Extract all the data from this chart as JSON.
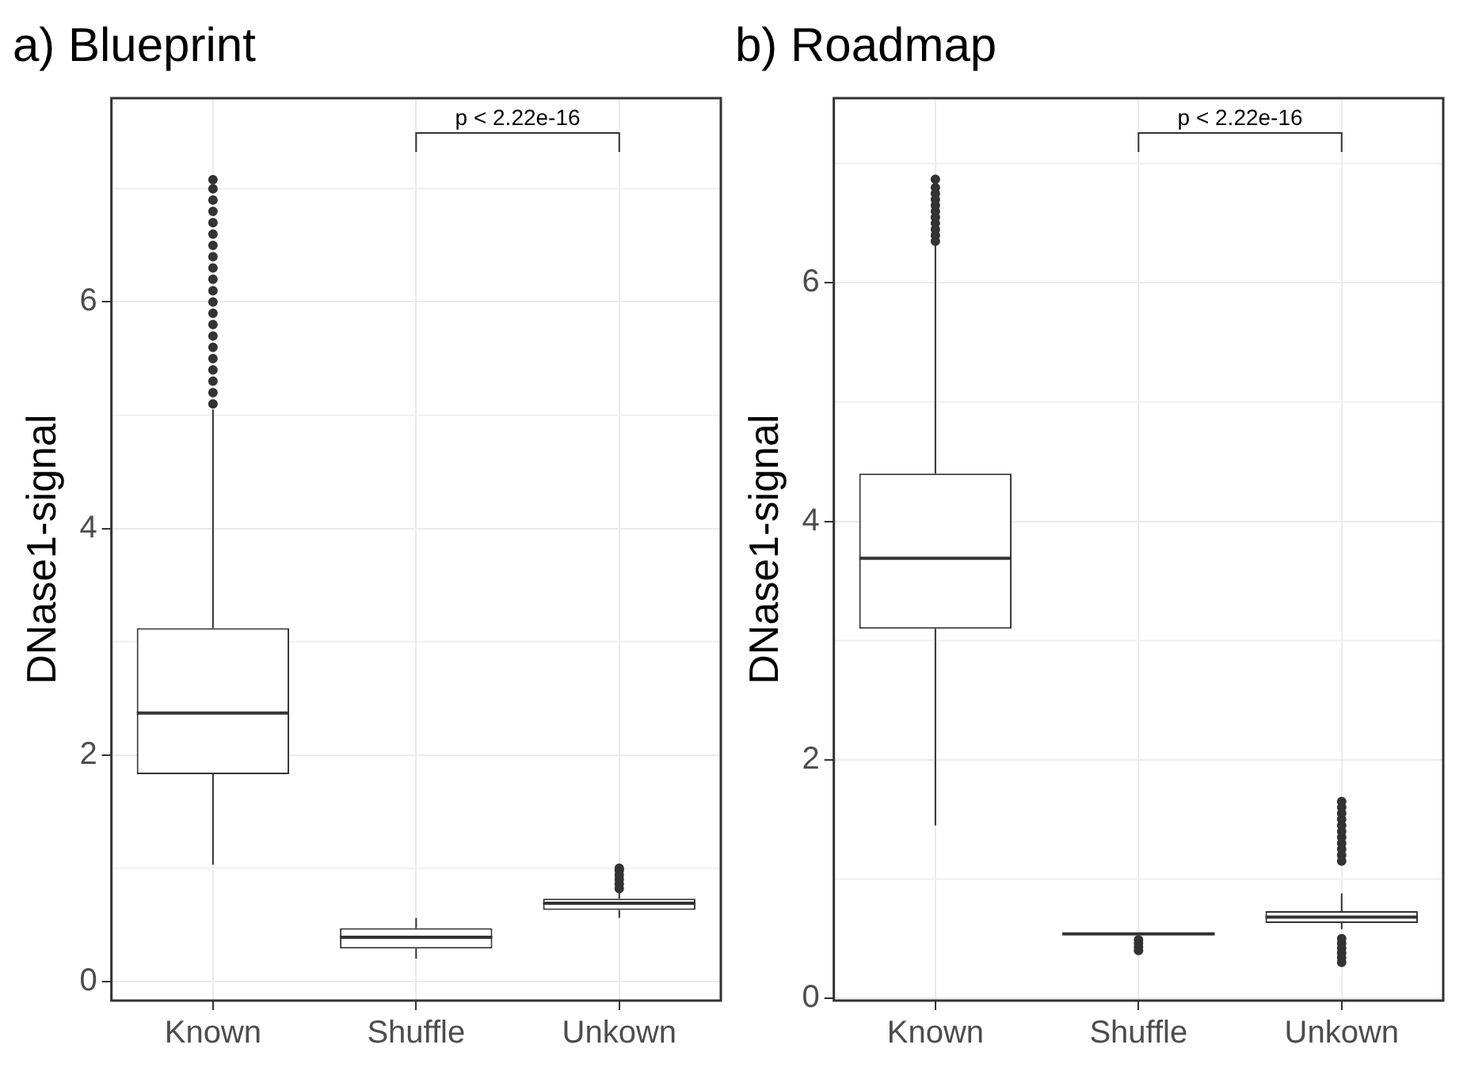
{
  "chart_data": [
    {
      "type": "box",
      "title": "a) Blueprint",
      "ylabel": "DNase1-signal",
      "categories": [
        "Known",
        "Shuffle",
        "Unkown"
      ],
      "ylim": [
        -0.17,
        7.8
      ],
      "yticks": [
        0,
        2,
        4,
        6
      ],
      "grid": true,
      "annotations": [
        "p < 2.22e-16"
      ],
      "boxes": [
        {
          "low": 1.03,
          "q1": 1.83,
          "median": 2.37,
          "q3": 3.12,
          "high": 5.05,
          "outliers": [
            5.1,
            5.2,
            5.3,
            5.4,
            5.5,
            5.6,
            5.7,
            5.8,
            5.9,
            6.0,
            6.1,
            6.2,
            6.3,
            6.4,
            6.5,
            6.6,
            6.7,
            6.8,
            6.9,
            7.0,
            7.08
          ]
        },
        {
          "low": 0.2,
          "q1": 0.29,
          "median": 0.39,
          "q3": 0.47,
          "high": 0.56
        },
        {
          "low": 0.56,
          "q1": 0.63,
          "median": 0.69,
          "q3": 0.73,
          "high": 0.8,
          "outliers": [
            0.82,
            0.86,
            0.9,
            0.94,
            0.98,
            1.0
          ]
        }
      ]
    },
    {
      "type": "box",
      "title": "b) Roadmap",
      "ylabel": "DNase1-signal",
      "categories": [
        "Known",
        "Shuffle",
        "Unkown"
      ],
      "ylim": [
        -0.02,
        7.55
      ],
      "yticks": [
        0,
        2,
        4,
        6
      ],
      "grid": true,
      "annotations": [
        "p < 2.22e-16"
      ],
      "boxes": [
        {
          "low": 1.45,
          "q1": 3.1,
          "median": 3.69,
          "q3": 4.4,
          "high": 6.32,
          "outliers": [
            6.35,
            6.4,
            6.45,
            6.5,
            6.55,
            6.6,
            6.65,
            6.7,
            6.75,
            6.8,
            6.87
          ]
        },
        {
          "low": 0.53,
          "q1": 0.535,
          "median": 0.54,
          "q3": 0.545,
          "high": 0.55,
          "outliers": [
            0.4,
            0.43,
            0.46,
            0.49
          ]
        },
        {
          "low": 0.58,
          "q1": 0.63,
          "median": 0.68,
          "q3": 0.73,
          "high": 0.88,
          "outliers": [
            0.3,
            0.34,
            0.38,
            0.42,
            0.46,
            0.5,
            1.15,
            1.2,
            1.25,
            1.3,
            1.35,
            1.4,
            1.45,
            1.5,
            1.55,
            1.6,
            1.65
          ]
        }
      ]
    }
  ]
}
